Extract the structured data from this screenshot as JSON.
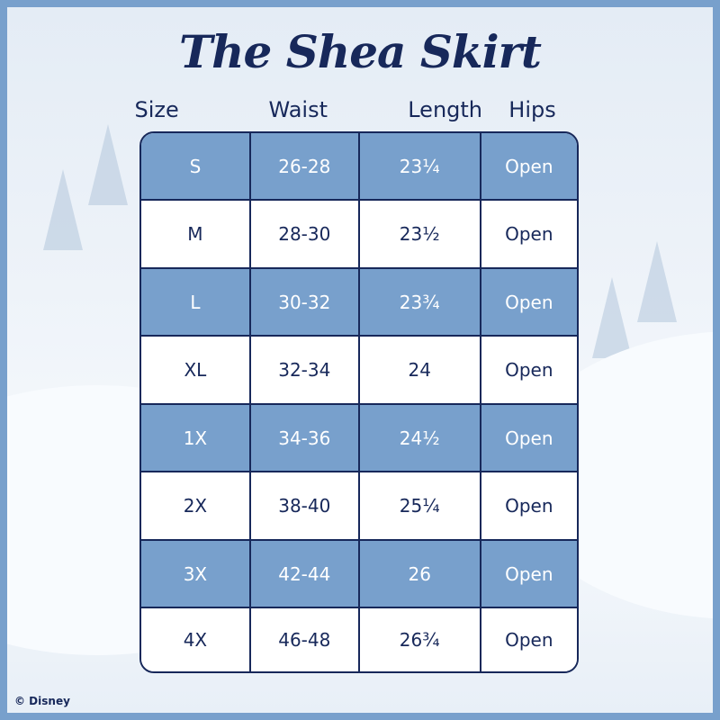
{
  "title": "The Shea Skirt",
  "headers": [
    "Size",
    "Waist",
    "Length",
    "Hips"
  ],
  "rows": [
    {
      "size": "S",
      "waist": "26-28",
      "length": "23¼",
      "hips": "Open"
    },
    {
      "size": "M",
      "waist": "28-30",
      "length": "23½",
      "hips": "Open"
    },
    {
      "size": "L",
      "waist": "30-32",
      "length": "23¾",
      "hips": "Open"
    },
    {
      "size": "XL",
      "waist": "32-34",
      "length": "24",
      "hips": "Open"
    },
    {
      "size": "1X",
      "waist": "34-36",
      "length": "24½",
      "hips": "Open"
    },
    {
      "size": "2X",
      "waist": "38-40",
      "length": "25¼",
      "hips": "Open"
    },
    {
      "size": "3X",
      "waist": "42-44",
      "length": "26",
      "hips": "Open"
    },
    {
      "size": "4X",
      "waist": "46-48",
      "length": "26¾",
      "hips": "Open"
    }
  ],
  "copyright": "© Disney",
  "colors": {
    "accent_blue": "#78a0cc",
    "navy": "#17285a",
    "row_white": "#ffffff"
  }
}
